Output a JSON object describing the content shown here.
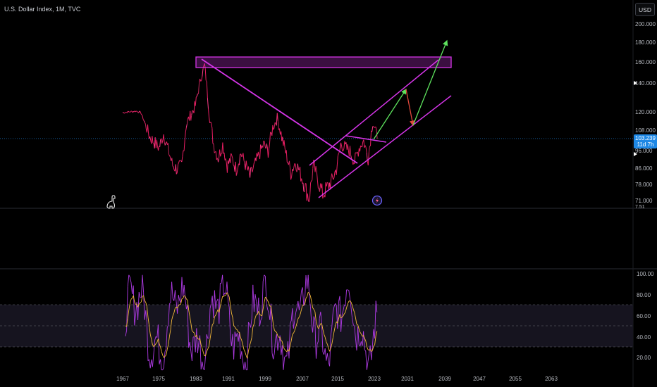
{
  "header": {
    "title": "U.S. Dollar Index, 1M, TVC",
    "currency_button": "USD"
  },
  "price_axis": {
    "labels": [
      "200.000",
      "180.000",
      "160.000",
      "140.000",
      "120.000",
      "108.000",
      "96.000",
      "86.000",
      "78.000",
      "71.000",
      "7.51"
    ],
    "current_price": "103.239",
    "countdown": "11d 7h"
  },
  "oscillator_axis": {
    "labels": [
      "100.00",
      "80.00",
      "60.00",
      "40.00",
      "20.00"
    ]
  },
  "time_axis": {
    "labels": [
      "1967",
      "1975",
      "1983",
      "1991",
      "1999",
      "2007",
      "2015",
      "2023",
      "2031",
      "2039",
      "2047",
      "2055",
      "2063"
    ]
  },
  "colors": {
    "price_line": "#e91e63",
    "drawing": "#d535e8",
    "arrow_up": "#5ee35e",
    "arrow_down": "#e0483c",
    "oscillator_line": "#b03be6",
    "signal_line": "#f5b93a",
    "price_tag": "#1e88e5",
    "current_price_line": "#1e88e5"
  },
  "icons": {
    "chart_logo": "dino-icon",
    "event_marker": "lightning-icon"
  },
  "chart_data": {
    "type": "line",
    "title": "U.S. Dollar Index, 1M, TVC",
    "y_axis_ticks": [
      71,
      78,
      86,
      96,
      108,
      120,
      140,
      160,
      180,
      200
    ],
    "x_axis_ticks": [
      1967,
      1975,
      1983,
      1991,
      1999,
      2007,
      2015,
      2023,
      2031,
      2039,
      2047,
      2055,
      2063
    ],
    "series": [
      {
        "x": [
          1967,
          1970,
          1971,
          1973,
          1975,
          1976,
          1978,
          1979,
          1980,
          1981,
          1983,
          1985,
          1986,
          1987,
          1988,
          1989,
          1990,
          1991,
          1992,
          1993,
          1995,
          1996,
          1998,
          1999,
          2000,
          2001,
          2002,
          2004,
          2005,
          2006,
          2008,
          2009,
          2010,
          2011,
          2013,
          2014,
          2015,
          2017,
          2018,
          2019,
          2020,
          2021,
          2022,
          2023
        ],
        "values": [
          120,
          121,
          120,
          104,
          98,
          106,
          88,
          86,
          88,
          112,
          125,
          158,
          120,
          100,
          92,
          100,
          88,
          92,
          86,
          95,
          82,
          88,
          100,
          96,
          110,
          116,
          104,
          84,
          90,
          84,
          72,
          88,
          80,
          74,
          80,
          86,
          100,
          96,
          90,
          98,
          102,
          92,
          114,
          103
        ]
      }
    ],
    "current_value": 103.239,
    "oscillator": {
      "range": [
        0,
        100
      ],
      "levels": [
        30,
        50,
        70
      ],
      "y_axis_ticks": [
        20,
        40,
        60,
        80,
        100
      ]
    }
  }
}
